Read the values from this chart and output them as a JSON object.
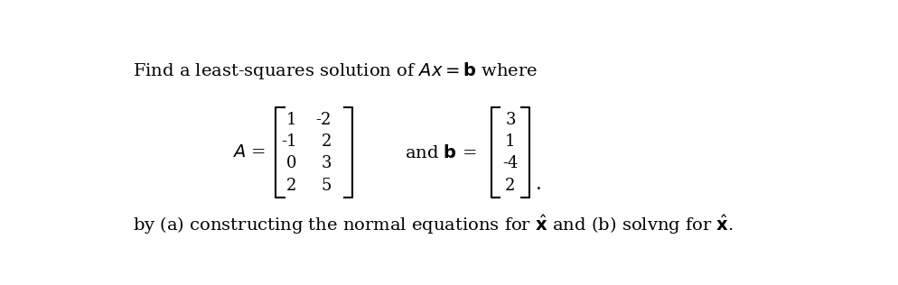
{
  "bg_color": "#ffffff",
  "text_color": "#000000",
  "title_line1": "Find a least-squares solution of ",
  "title_Ax": "Ax",
  "title_eq": " = ",
  "title_b": "b",
  "title_where": " where",
  "A_label": "A = ",
  "matrix_A": [
    [
      "1",
      "-2"
    ],
    [
      "-1",
      "2"
    ],
    [
      "0",
      "3"
    ],
    [
      "2",
      "5"
    ]
  ],
  "and_b_label": "and ",
  "b_bold": "b",
  "b_eq": " = ",
  "matrix_b": [
    "3",
    "1",
    "-4",
    "2"
  ],
  "period": ".",
  "bottom_pre": "by (a) constructing the normal equations for ",
  "x_hat1": "$\\hat{x}$",
  "bottom_mid": " and (b) solvng for ",
  "x_hat2": "$\\hat{x}$",
  "bottom_end": ".",
  "font_size_title": 14,
  "font_size_matrix": 13,
  "font_size_bottom": 14
}
